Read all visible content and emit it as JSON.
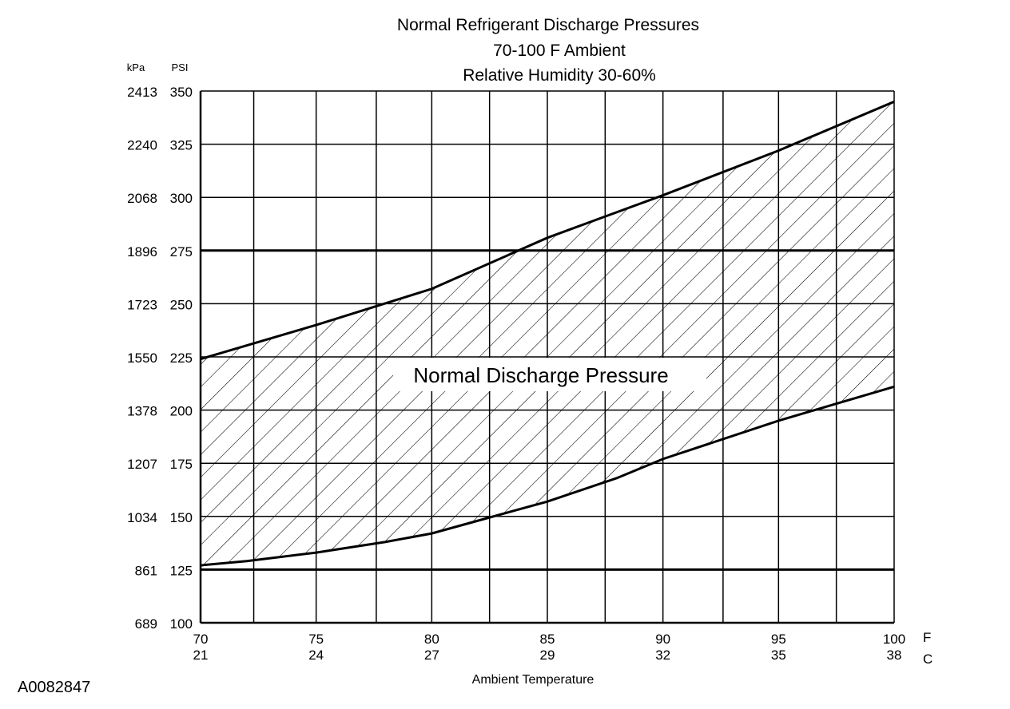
{
  "chart_data": {
    "type": "area",
    "title_lines": [
      "Normal  Refrigerant  Discharge  Pressures",
      "70-100 F Ambient",
      "Relative Humidity 30-60%"
    ],
    "xlabel": "Ambient Temperature",
    "x_unit_f": "F",
    "x_unit_c": "C",
    "y_unit_left": "kPa",
    "y_unit_right": "PSI",
    "xlim": [
      70,
      100
    ],
    "ylim": [
      100,
      350
    ],
    "x_ticks": [
      {
        "f": "70",
        "c": "21",
        "value": 70
      },
      {
        "f": "75",
        "c": "24",
        "value": 75
      },
      {
        "f": "80",
        "c": "27",
        "value": 80
      },
      {
        "f": "85",
        "c": "29",
        "value": 85
      },
      {
        "f": "90",
        "c": "32",
        "value": 90
      },
      {
        "f": "95",
        "c": "35",
        "value": 95
      },
      {
        "f": "100",
        "c": "38",
        "value": 100
      }
    ],
    "y_ticks": [
      {
        "psi": "350",
        "kpa": "2413",
        "value": 350
      },
      {
        "psi": "325",
        "kpa": "2240",
        "value": 325
      },
      {
        "psi": "300",
        "kpa": "2068",
        "value": 300
      },
      {
        "psi": "275",
        "kpa": "1896",
        "value": 275
      },
      {
        "psi": "250",
        "kpa": "1723",
        "value": 250
      },
      {
        "psi": "225",
        "kpa": "1550",
        "value": 225
      },
      {
        "psi": "200",
        "kpa": "1378",
        "value": 200
      },
      {
        "psi": "175",
        "kpa": "1207",
        "value": 175
      },
      {
        "psi": "150",
        "kpa": "1034",
        "value": 150
      },
      {
        "psi": "125",
        "kpa": "861",
        "value": 125
      },
      {
        "psi": "100",
        "kpa": "689",
        "value": 100
      }
    ],
    "grid_x": [
      72.3,
      75,
      77.6,
      80,
      82.5,
      85,
      87.5,
      90,
      92.6,
      95,
      97.5,
      100
    ],
    "grid_y": [
      125,
      150,
      175,
      200,
      225,
      250,
      275,
      300,
      325,
      350
    ],
    "bold_grid_y": [
      125,
      275
    ],
    "upper_bound": {
      "x": [
        70,
        75,
        80,
        85,
        90,
        95,
        100
      ],
      "y": [
        224,
        240,
        257,
        281,
        301,
        322,
        345
      ]
    },
    "lower_bound": {
      "x": [
        70,
        72,
        75,
        78,
        80,
        82,
        85,
        88,
        90,
        95,
        100
      ],
      "y": [
        127,
        129,
        133,
        138,
        142,
        148,
        157,
        168,
        177,
        195,
        211
      ]
    },
    "band_label": "Normal Discharge Pressure",
    "band_label_position": {
      "x": 84.5,
      "y": 221
    }
  },
  "figure_id": "A0082847"
}
